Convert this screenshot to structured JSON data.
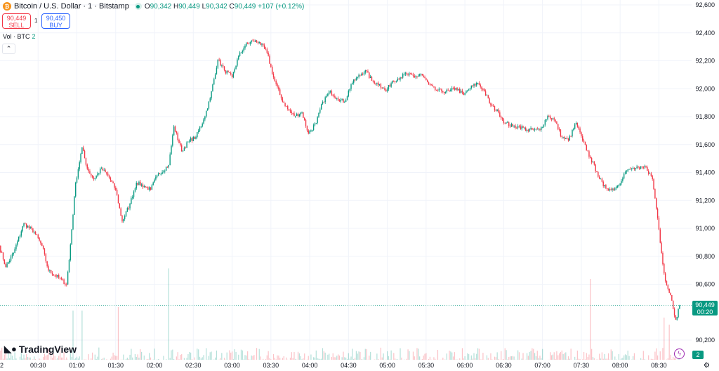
{
  "header": {
    "coin_glyph": "₿",
    "symbol": "Bitcoin / U.S. Dollar · 1 · Bitstamp",
    "o_label": "O",
    "o": "90,342",
    "h_label": "H",
    "h": "90,449",
    "l_label": "L",
    "l": "90,342",
    "c_label": "C",
    "c": "90,449",
    "change": "+107 (+0.12%)"
  },
  "trade": {
    "sell_price": "90,449",
    "sell_label": "SELL",
    "spread": "1",
    "buy_price": "90,450",
    "buy_label": "BUY"
  },
  "volume_indicator": {
    "label": "Vol · BTC",
    "value": "2"
  },
  "collapse_glyph": "⌃",
  "logo": "TradingView",
  "last_price": {
    "price": "90,449",
    "countdown": "00:20"
  },
  "last_volume": "2",
  "colors": {
    "up": "#089981",
    "down": "#f23645",
    "grid": "#f0f3fa"
  },
  "chart_data": {
    "type": "candlestick",
    "price_ticks": [
      "92,600",
      "92,400",
      "92,200",
      "92,000",
      "91,800",
      "91,600",
      "91,400",
      "91,200",
      "91,000",
      "90,800",
      "90,600",
      "90,200"
    ],
    "price_tick_values": [
      92600,
      92400,
      92200,
      92000,
      91800,
      91600,
      91400,
      91200,
      91000,
      90800,
      90600,
      90200
    ],
    "time_ticks": [
      "00:30",
      "01:00",
      "01:30",
      "02:00",
      "02:30",
      "03:00",
      "03:30",
      "04:00",
      "04:30",
      "05:00",
      "05:30",
      "06:00",
      "06:30",
      "07:00",
      "07:30",
      "08:00",
      "08:30"
    ],
    "time_tick_minutes": [
      30,
      60,
      90,
      120,
      150,
      180,
      210,
      240,
      270,
      300,
      330,
      360,
      390,
      420,
      450,
      480,
      510
    ],
    "left_edge_label": "2",
    "price_range": [
      90200,
      92600
    ],
    "interval_minutes": 1,
    "close_path": [
      [
        0,
        90874
      ],
      [
        5,
        90723
      ],
      [
        11,
        90824
      ],
      [
        19,
        91035
      ],
      [
        27,
        90975
      ],
      [
        33,
        90874
      ],
      [
        38,
        90698
      ],
      [
        46,
        90648
      ],
      [
        52,
        90598
      ],
      [
        54,
        90774
      ],
      [
        59,
        91327
      ],
      [
        64,
        91579
      ],
      [
        68,
        91428
      ],
      [
        73,
        91352
      ],
      [
        79,
        91428
      ],
      [
        84,
        91378
      ],
      [
        90,
        91277
      ],
      [
        95,
        91050
      ],
      [
        101,
        91176
      ],
      [
        106,
        91327
      ],
      [
        112,
        91302
      ],
      [
        117,
        91277
      ],
      [
        122,
        91378
      ],
      [
        131,
        91453
      ],
      [
        135,
        91730
      ],
      [
        141,
        91554
      ],
      [
        147,
        91629
      ],
      [
        152,
        91654
      ],
      [
        158,
        91780
      ],
      [
        163,
        91931
      ],
      [
        169,
        92208
      ],
      [
        174,
        92132
      ],
      [
        180,
        92082
      ],
      [
        185,
        92233
      ],
      [
        190,
        92308
      ],
      [
        196,
        92343
      ],
      [
        201,
        92333
      ],
      [
        207,
        92258
      ],
      [
        212,
        92082
      ],
      [
        218,
        91931
      ],
      [
        223,
        91855
      ],
      [
        228,
        91805
      ],
      [
        234,
        91830
      ],
      [
        239,
        91679
      ],
      [
        245,
        91755
      ],
      [
        250,
        91906
      ],
      [
        256,
        91981
      ],
      [
        261,
        91931
      ],
      [
        267,
        91906
      ],
      [
        272,
        92031
      ],
      [
        277,
        92082
      ],
      [
        283,
        92132
      ],
      [
        288,
        92057
      ],
      [
        294,
        92031
      ],
      [
        299,
        91981
      ],
      [
        304,
        92057
      ],
      [
        310,
        92082
      ],
      [
        315,
        92107
      ],
      [
        321,
        92082
      ],
      [
        326,
        92107
      ],
      [
        332,
        92031
      ],
      [
        337,
        91991
      ],
      [
        342,
        91981
      ],
      [
        348,
        91981
      ],
      [
        353,
        92006
      ],
      [
        359,
        91956
      ],
      [
        364,
        92006
      ],
      [
        370,
        92042
      ],
      [
        375,
        91981
      ],
      [
        380,
        91881
      ],
      [
        386,
        91830
      ],
      [
        391,
        91755
      ],
      [
        397,
        91730
      ],
      [
        402,
        91730
      ],
      [
        408,
        91705
      ],
      [
        413,
        91705
      ],
      [
        418,
        91705
      ],
      [
        424,
        91805
      ],
      [
        429,
        91780
      ],
      [
        435,
        91654
      ],
      [
        440,
        91629
      ],
      [
        446,
        91755
      ],
      [
        451,
        91629
      ],
      [
        457,
        91503
      ],
      [
        462,
        91403
      ],
      [
        467,
        91302
      ],
      [
        473,
        91277
      ],
      [
        478,
        91302
      ],
      [
        484,
        91403
      ],
      [
        489,
        91428
      ],
      [
        495,
        91428
      ],
      [
        500,
        91438
      ],
      [
        505,
        91352
      ],
      [
        509,
        91076
      ],
      [
        512,
        90824
      ],
      [
        515,
        90623
      ],
      [
        519,
        90522
      ],
      [
        523,
        90346
      ],
      [
        526,
        90449
      ]
    ],
    "volume_spikes": [
      [
        57,
        1.4
      ],
      [
        64,
        1.4
      ],
      [
        92,
        1.5
      ],
      [
        131,
        2.6
      ],
      [
        457,
        2.3
      ],
      [
        514,
        1.2
      ],
      [
        518,
        1.0
      ]
    ]
  }
}
